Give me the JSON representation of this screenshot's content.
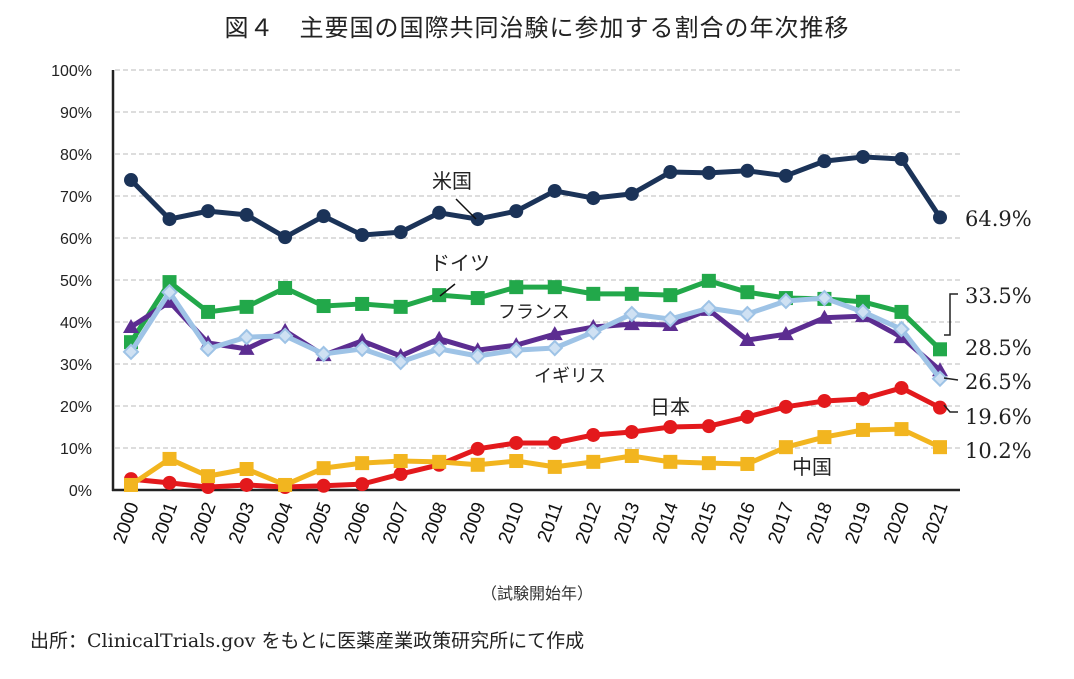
{
  "chart_data": {
    "type": "line",
    "title": "図４　主要国の国際共同治験に参加する割合の年次推移",
    "xlabel": "（試験開始年）",
    "ylabel": "",
    "source": "出所：ClinicalTrials.gov をもとに医薬産業政策研究所にて作成",
    "ylim": [
      0,
      100
    ],
    "yticks": [
      "0%",
      "10%",
      "20%",
      "30%",
      "40%",
      "50%",
      "60%",
      "70%",
      "80%",
      "90%",
      "100%"
    ],
    "grid": true,
    "categories": [
      "2000",
      "2001",
      "2002",
      "2003",
      "2004",
      "2005",
      "2006",
      "2007",
      "2008",
      "2009",
      "2010",
      "2011",
      "2012",
      "2013",
      "2014",
      "2015",
      "2016",
      "2017",
      "2018",
      "2019",
      "2020",
      "2021"
    ],
    "series": [
      {
        "name": "米国",
        "color": "#1b3358",
        "marker": "circle",
        "end_label": "64.9%",
        "values": [
          73.8,
          64.5,
          66.4,
          65.5,
          60.2,
          65.2,
          60.7,
          61.4,
          66.0,
          64.5,
          66.4,
          71.2,
          69.5,
          70.5,
          75.7,
          75.5,
          76.0,
          74.8,
          78.3,
          79.3,
          78.8,
          64.9
        ]
      },
      {
        "name": "ドイツ",
        "color": "#22a84a",
        "marker": "square",
        "end_label": "33.5%",
        "values": [
          35.2,
          49.5,
          42.4,
          43.6,
          48.1,
          43.8,
          44.3,
          43.6,
          46.4,
          45.7,
          48.3,
          48.3,
          46.7,
          46.7,
          46.4,
          49.8,
          47.1,
          45.7,
          45.5,
          44.8,
          42.4,
          33.5
        ]
      },
      {
        "name": "フランス",
        "color": "#5c2d91",
        "marker": "triangle",
        "end_label": "28.5%",
        "values": [
          38.8,
          44.8,
          35.0,
          33.6,
          37.9,
          32.1,
          35.5,
          31.9,
          36.0,
          33.3,
          34.5,
          37.1,
          38.8,
          39.5,
          39.3,
          42.9,
          35.7,
          37.1,
          41.0,
          41.4,
          36.4,
          28.5
        ]
      },
      {
        "name": "イギリス",
        "color": "#9ec3e6",
        "marker": "diamond",
        "end_label": "26.5%",
        "values": [
          32.9,
          47.1,
          33.6,
          36.4,
          36.7,
          32.4,
          33.6,
          30.5,
          33.6,
          31.9,
          33.3,
          33.8,
          37.6,
          41.9,
          40.7,
          43.3,
          41.9,
          45.0,
          45.7,
          42.4,
          38.3,
          26.5
        ]
      },
      {
        "name": "日本",
        "color": "#e3191c",
        "marker": "circle",
        "end_label": "19.6%",
        "values": [
          2.6,
          1.7,
          0.7,
          1.2,
          0.7,
          1.0,
          1.4,
          3.8,
          6.0,
          9.8,
          11.2,
          11.2,
          13.1,
          13.8,
          15.0,
          15.2,
          17.4,
          19.8,
          21.2,
          21.7,
          24.3,
          19.6
        ]
      },
      {
        "name": "中国",
        "color": "#f2b51f",
        "marker": "square",
        "end_label": "10.2%",
        "values": [
          1.2,
          7.4,
          3.3,
          5.0,
          1.2,
          5.2,
          6.4,
          6.9,
          6.7,
          6.0,
          6.9,
          5.5,
          6.7,
          8.1,
          6.7,
          6.4,
          6.2,
          10.2,
          12.6,
          14.3,
          14.5,
          10.2
        ]
      }
    ]
  }
}
